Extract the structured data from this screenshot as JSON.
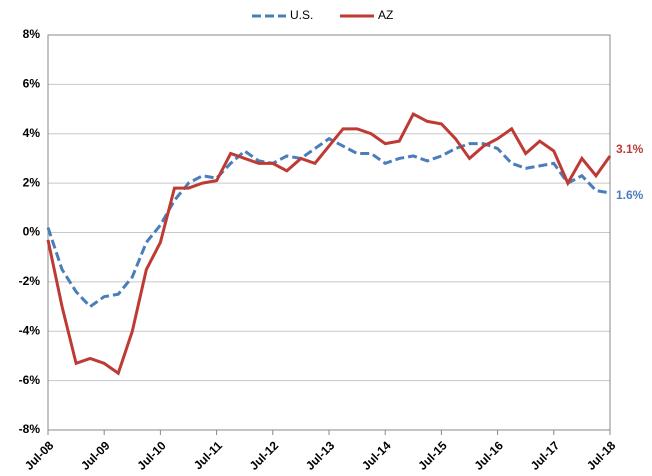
{
  "chart_data": {
    "type": "line",
    "categories": [
      "Jul-08",
      null,
      null,
      null,
      "Jul-09",
      null,
      null,
      null,
      "Jul-10",
      null,
      null,
      null,
      "Jul-11",
      null,
      null,
      null,
      "Jul-12",
      null,
      null,
      null,
      "Jul-13",
      null,
      null,
      null,
      "Jul-14",
      null,
      null,
      null,
      "Jul-15",
      null,
      null,
      null,
      "Jul-16",
      null,
      null,
      null,
      "Jul-17",
      null,
      null,
      null,
      "Jul-18"
    ],
    "series": [
      {
        "name": "U.S.",
        "color": "#4a7ebb",
        "dashed": true,
        "values": [
          0.2,
          -1.5,
          -2.4,
          -3.0,
          -2.6,
          -2.5,
          -1.8,
          -0.4,
          0.3,
          1.3,
          2.0,
          2.3,
          2.2,
          2.8,
          3.3,
          2.9,
          2.8,
          3.1,
          3.0,
          3.4,
          3.8,
          3.5,
          3.2,
          3.2,
          2.8,
          3.0,
          3.1,
          2.9,
          3.1,
          3.4,
          3.6,
          3.6,
          3.4,
          2.8,
          2.6,
          2.7,
          2.8,
          2.0,
          2.3,
          1.7,
          1.6
        ],
        "value_labels": [
          null,
          null,
          null,
          null,
          null,
          null,
          null,
          null,
          null,
          null,
          null,
          null,
          null,
          null,
          null,
          null,
          null,
          null,
          null,
          null,
          null,
          null,
          null,
          null,
          null,
          null,
          null,
          null,
          null,
          null,
          null,
          null,
          null,
          null,
          null,
          null,
          null,
          null,
          null,
          null,
          "1.6%"
        ]
      },
      {
        "name": "AZ",
        "color": "#be3a34",
        "dashed": false,
        "values": [
          -0.3,
          -3.0,
          -5.3,
          -5.1,
          -5.3,
          -5.7,
          -4.0,
          -1.5,
          -0.4,
          1.8,
          1.8,
          2.0,
          2.1,
          3.2,
          3.0,
          2.8,
          2.8,
          2.5,
          3.0,
          2.8,
          3.5,
          4.2,
          4.2,
          4.0,
          3.6,
          3.7,
          4.8,
          4.5,
          4.4,
          3.8,
          3.0,
          3.5,
          3.8,
          4.2,
          3.2,
          3.7,
          3.3,
          2.0,
          3.0,
          2.3,
          3.1
        ],
        "value_labels": [
          null,
          null,
          null,
          null,
          null,
          null,
          null,
          null,
          null,
          null,
          null,
          null,
          null,
          null,
          null,
          null,
          null,
          null,
          null,
          null,
          null,
          null,
          null,
          null,
          null,
          null,
          null,
          null,
          null,
          null,
          null,
          null,
          null,
          null,
          null,
          null,
          null,
          null,
          null,
          null,
          "3.1%"
        ]
      }
    ],
    "ylim": [
      -8,
      8
    ],
    "yticks": [
      {
        "value": -8,
        "label": "-8%"
      },
      {
        "value": -6,
        "label": "-6%"
      },
      {
        "value": -4,
        "label": "-4%"
      },
      {
        "value": -2,
        "label": "-2%"
      },
      {
        "value": 0,
        "label": "0%"
      },
      {
        "value": 2,
        "label": "2%"
      },
      {
        "value": 4,
        "label": "4%"
      },
      {
        "value": 6,
        "label": "6%"
      },
      {
        "value": 8,
        "label": "8%"
      }
    ],
    "grid": true,
    "legend": "top"
  }
}
